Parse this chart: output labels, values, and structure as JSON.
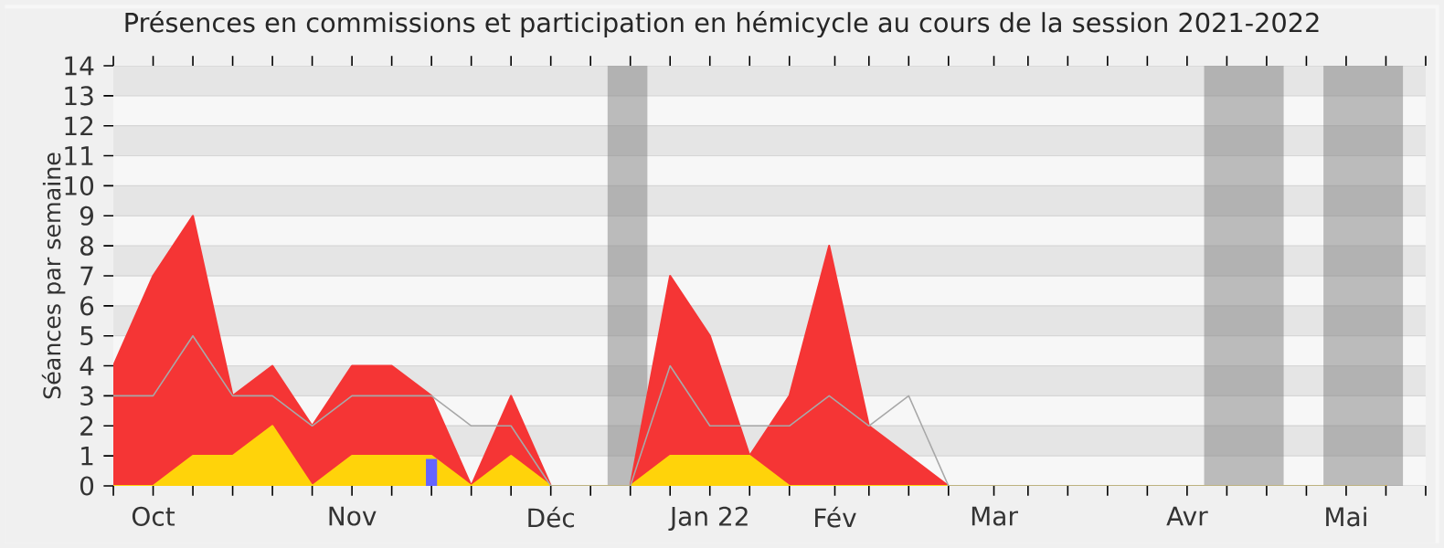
{
  "chart_data": {
    "type": "area",
    "title": "Présences en commissions et participation en hémicycle au cours de la session 2021-2022",
    "ylabel": "Séances par semaine",
    "x": [
      "2021-09-27",
      "2021-10-04",
      "2021-10-11",
      "2021-10-18",
      "2021-10-25",
      "2021-11-01",
      "2021-11-08",
      "2021-11-15",
      "2021-11-22",
      "2021-11-29",
      "2021-12-06",
      "2021-12-13",
      "2021-12-20",
      "2021-12-27",
      "2022-01-03",
      "2022-01-10",
      "2022-01-17",
      "2022-01-24",
      "2022-01-31",
      "2022-02-07",
      "2022-02-14",
      "2022-02-21",
      "2022-02-28",
      "2022-03-07",
      "2022-03-14",
      "2022-03-21",
      "2022-03-28",
      "2022-04-04",
      "2022-04-11",
      "2022-04-18",
      "2022-04-25",
      "2022-05-02",
      "2022-05-09"
    ],
    "series": [
      {
        "color": "#f53535",
        "values": [
          4,
          7,
          9,
          3,
          4,
          2,
          4,
          4,
          3,
          0,
          3,
          0,
          0,
          0,
          7,
          5,
          1,
          3,
          8,
          2,
          1,
          0,
          0,
          0,
          0,
          0,
          0,
          0,
          0,
          0,
          0,
          0,
          0
        ]
      },
      {
        "color": "#ffd30a",
        "values": [
          0,
          0,
          1,
          1,
          2,
          0,
          1,
          1,
          1,
          0,
          1,
          0,
          0,
          0,
          1,
          1,
          1,
          0,
          0,
          0,
          0,
          0,
          0,
          0,
          0,
          0,
          0,
          0,
          0,
          0,
          0,
          0,
          0
        ]
      },
      {
        "type": "line",
        "color": "#a8a8a8",
        "values": [
          3,
          3,
          5,
          3,
          3,
          2,
          3,
          3,
          3,
          2,
          2,
          0,
          0,
          0,
          4,
          2,
          2,
          2,
          3,
          2,
          3,
          0,
          0,
          0,
          0,
          0,
          0,
          0,
          0,
          0,
          0,
          0,
          0
        ]
      },
      {
        "type": "bar",
        "color": "#6464ff",
        "x": [
          "2021-11-22"
        ],
        "values": [
          0.9
        ]
      }
    ],
    "bands": [
      {
        "axis": "x",
        "from": "2021-12-23",
        "to": "2021-12-30",
        "color": "#808080"
      },
      {
        "axis": "x",
        "from": "2022-04-07",
        "to": "2022-04-21",
        "color": "#808080"
      },
      {
        "axis": "x",
        "from": "2022-04-28",
        "to": "2022-05-12",
        "color": "#808080"
      }
    ],
    "xlim": [
      "2021-09-27",
      "2022-05-16"
    ],
    "xticks": [
      {
        "value": "2021-09-27",
        "label": null
      },
      {
        "value": "2021-10-04",
        "label": "Oct"
      },
      {
        "value": "2021-10-11",
        "label": null
      },
      {
        "value": "2021-10-18",
        "label": null
      },
      {
        "value": "2021-10-25",
        "label": null
      },
      {
        "value": "2021-11-01",
        "label": null
      },
      {
        "value": "2021-11-08",
        "label": "Nov"
      },
      {
        "value": "2021-11-15",
        "label": null
      },
      {
        "value": "2021-11-22",
        "label": null
      },
      {
        "value": "2021-11-29",
        "label": null
      },
      {
        "value": "2021-12-06",
        "label": null
      },
      {
        "value": "2021-12-13",
        "label": "Déc"
      },
      {
        "value": "2021-12-20",
        "label": null
      },
      {
        "value": "2021-12-27",
        "label": null
      },
      {
        "value": "2022-01-03",
        "label": null
      },
      {
        "value": "2022-01-10",
        "label": "Jan 22"
      },
      {
        "value": "2022-01-17",
        "label": null
      },
      {
        "value": "2022-01-24",
        "label": null
      },
      {
        "value": "2022-02-01",
        "label": "Fév"
      },
      {
        "value": "2022-02-07",
        "label": null
      },
      {
        "value": "2022-02-14",
        "label": null
      },
      {
        "value": "2022-02-21",
        "label": null
      },
      {
        "value": "2022-03-01",
        "label": "Mar"
      },
      {
        "value": "2022-03-07",
        "label": null
      },
      {
        "value": "2022-03-14",
        "label": null
      },
      {
        "value": "2022-03-21",
        "label": null
      },
      {
        "value": "2022-03-28",
        "label": null
      },
      {
        "value": "2022-04-04",
        "label": "Avr"
      },
      {
        "value": "2022-04-11",
        "label": null
      },
      {
        "value": "2022-04-18",
        "label": null
      },
      {
        "value": "2022-04-25",
        "label": null
      },
      {
        "value": "2022-05-02",
        "label": "Mai"
      },
      {
        "value": "2022-05-09",
        "label": null
      },
      {
        "value": "2022-05-16",
        "label": null
      }
    ],
    "ylim": [
      0,
      14
    ],
    "yticks": [
      0,
      1,
      2,
      3,
      4,
      5,
      6,
      7,
      8,
      9,
      10,
      11,
      12,
      13,
      14
    ],
    "grid": "y"
  }
}
